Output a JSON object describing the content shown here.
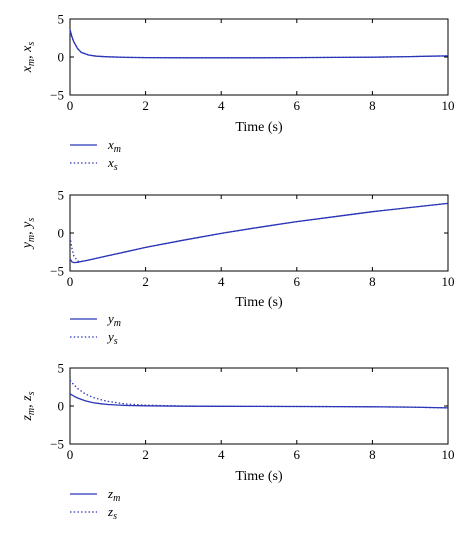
{
  "chart_data": [
    {
      "type": "line",
      "xlabel": "Time (s)",
      "ylabel": {
        "a": "x",
        "a_sub": "m",
        "b": "x",
        "b_sub": "s"
      },
      "xlim": [
        0,
        10
      ],
      "ylim": [
        -5,
        5
      ],
      "xticks": [
        "0",
        "2",
        "4",
        "6",
        "8",
        "10"
      ],
      "yticks": [
        "5",
        "0",
        "−5"
      ],
      "grid": false,
      "legend_position": "below",
      "series": [
        {
          "name": {
            "base": "x",
            "sub": "m"
          },
          "style": "solid",
          "color": "#2b35b8",
          "x": [
            0,
            0.05,
            0.1,
            0.2,
            0.3,
            0.5,
            0.7,
            1.0,
            1.5,
            2,
            3,
            4,
            5,
            6,
            7,
            8,
            9,
            9.5,
            10
          ],
          "y": [
            3.6,
            2.7,
            2.0,
            1.1,
            0.6,
            0.25,
            0.1,
            0.02,
            -0.05,
            -0.08,
            -0.1,
            -0.1,
            -0.1,
            -0.08,
            -0.05,
            -0.02,
            0.05,
            0.1,
            0.15
          ]
        },
        {
          "name": {
            "base": "x",
            "sub": "s"
          },
          "style": "dotted",
          "color": "#2b35b8",
          "x": [
            0,
            0.05,
            0.1,
            0.2,
            0.3,
            0.5,
            0.7,
            1.0,
            1.5,
            2,
            3,
            4,
            5,
            6,
            7,
            8,
            9,
            9.5,
            10
          ],
          "y": [
            3.3,
            2.6,
            2.0,
            1.1,
            0.6,
            0.25,
            0.1,
            0.02,
            -0.05,
            -0.08,
            -0.1,
            -0.1,
            -0.1,
            -0.08,
            -0.05,
            -0.02,
            0.05,
            0.1,
            0.15
          ]
        }
      ]
    },
    {
      "type": "line",
      "xlabel": "Time (s)",
      "ylabel": {
        "a": "y",
        "a_sub": "m",
        "b": "y",
        "b_sub": "s"
      },
      "xlim": [
        0,
        10
      ],
      "ylim": [
        -5,
        5
      ],
      "xticks": [
        "0",
        "2",
        "4",
        "6",
        "8",
        "10"
      ],
      "yticks": [
        "5",
        "0",
        "−5"
      ],
      "grid": false,
      "legend_position": "below",
      "series": [
        {
          "name": {
            "base": "y",
            "sub": "m"
          },
          "style": "solid",
          "color": "#2b35b8",
          "x": [
            0,
            0.05,
            0.1,
            0.2,
            0.3,
            0.5,
            1,
            2,
            3,
            4,
            5,
            6,
            7,
            8,
            9,
            10
          ],
          "y": [
            -3.4,
            -3.8,
            -3.9,
            -3.85,
            -3.75,
            -3.55,
            -3.0,
            -1.9,
            -0.95,
            -0.05,
            0.75,
            1.5,
            2.15,
            2.8,
            3.35,
            3.9
          ]
        },
        {
          "name": {
            "base": "y",
            "sub": "s"
          },
          "style": "dotted",
          "color": "#2b35b8",
          "x": [
            0,
            0.05,
            0.1,
            0.2,
            0.3,
            0.5,
            1,
            2,
            3,
            4,
            5,
            6,
            7,
            8,
            9,
            10
          ],
          "y": [
            -0.5,
            -2.0,
            -3.0,
            -3.7,
            -3.75,
            -3.55,
            -3.0,
            -1.9,
            -0.95,
            -0.05,
            0.75,
            1.5,
            2.15,
            2.8,
            3.35,
            3.9
          ]
        }
      ]
    },
    {
      "type": "line",
      "xlabel": "Time (s)",
      "ylabel": {
        "a": "z",
        "a_sub": "m",
        "b": "z",
        "b_sub": "s"
      },
      "xlim": [
        0,
        10
      ],
      "ylim": [
        -5,
        5
      ],
      "xticks": [
        "0",
        "2",
        "4",
        "6",
        "8",
        "10"
      ],
      "yticks": [
        "5",
        "0",
        "−5"
      ],
      "grid": false,
      "legend_position": "below",
      "series": [
        {
          "name": {
            "base": "z",
            "sub": "m"
          },
          "style": "solid",
          "color": "#2b35b8",
          "x": [
            0,
            0.1,
            0.2,
            0.4,
            0.6,
            0.8,
            1.0,
            1.5,
            2,
            3,
            4,
            5,
            6,
            7,
            8,
            9,
            10
          ],
          "y": [
            1.6,
            1.3,
            1.05,
            0.7,
            0.45,
            0.3,
            0.2,
            0.07,
            0.02,
            -0.02,
            -0.04,
            -0.05,
            -0.06,
            -0.08,
            -0.1,
            -0.15,
            -0.25
          ]
        },
        {
          "name": {
            "base": "z",
            "sub": "s"
          },
          "style": "dotted",
          "color": "#2b35b8",
          "x": [
            0,
            0.1,
            0.2,
            0.4,
            0.6,
            0.8,
            1.0,
            1.5,
            2,
            3,
            4,
            5,
            6,
            7,
            8,
            9,
            10
          ],
          "y": [
            3.4,
            2.8,
            2.3,
            1.6,
            1.15,
            0.85,
            0.6,
            0.25,
            0.1,
            0.0,
            -0.04,
            -0.05,
            -0.06,
            -0.08,
            -0.1,
            -0.15,
            -0.25
          ]
        }
      ]
    }
  ]
}
